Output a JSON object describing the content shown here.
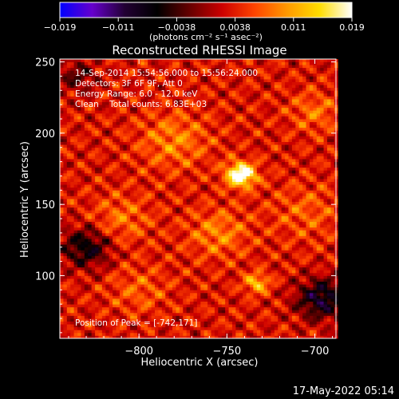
{
  "chart_data": {
    "type": "heatmap",
    "title": "Reconstructed RHESSI Image",
    "xlabel": "Heliocentric X (arcsec)",
    "ylabel": "Heliocentric Y (arcsec)",
    "xlim": [
      -845,
      -688
    ],
    "ylim": [
      56,
      252
    ],
    "x_ticks": [
      -800,
      -750,
      -700
    ],
    "x_tick_labels": [
      "−800",
      "−750",
      "−700"
    ],
    "y_ticks": [
      100,
      150,
      200,
      250
    ],
    "y_tick_labels": [
      "100",
      "150",
      "200",
      "250"
    ],
    "colorbar": {
      "min": -0.019,
      "max": 0.019,
      "tick_labels": [
        "−0.019",
        "−0.011",
        "−0.0038",
        "0.0038",
        "0.011",
        "0.019"
      ],
      "unit_label": "(photons cm⁻² s⁻¹ asec⁻²)",
      "colormap": [
        "#0000ff",
        "#6600cc",
        "#220033",
        "#000000",
        "#660000",
        "#cc0000",
        "#ff4400",
        "#ff9900",
        "#ffdd00",
        "#ffffff"
      ]
    },
    "annotations": [
      "14-Sep-2014 15:54:56.000 to 15:56:24.000",
      "Detectors: 3F 6F 9F, Att 0",
      "Energy Range: 6.0 - 12.0 keV",
      "Clean    Total counts: 6.83E+03"
    ],
    "peak_label": "Position of Peak = [-742,171]",
    "peak": {
      "x": -742,
      "y": 171
    },
    "features": [
      {
        "x": -742,
        "y": 171,
        "sigma": 6,
        "amplitude": 0.019
      },
      {
        "x": -733,
        "y": 95,
        "sigma": 5,
        "amplitude": 0.01
      },
      {
        "x": -780,
        "y": 195,
        "sigma": 14,
        "amplitude": 0.006
      },
      {
        "x": -755,
        "y": 130,
        "sigma": 12,
        "amplitude": 0.006
      },
      {
        "x": -810,
        "y": 140,
        "sigma": 12,
        "amplitude": 0.005
      },
      {
        "x": -700,
        "y": 215,
        "sigma": 10,
        "amplitude": 0.005
      },
      {
        "x": -705,
        "y": 145,
        "sigma": 14,
        "amplitude": 0.004
      },
      {
        "x": -800,
        "y": 90,
        "sigma": 12,
        "amplitude": 0.004
      },
      {
        "x": -830,
        "y": 120,
        "sigma": 10,
        "amplitude": -0.01
      },
      {
        "x": -696,
        "y": 84,
        "sigma": 10,
        "amplitude": -0.012
      },
      {
        "x": -835,
        "y": 240,
        "sigma": 8,
        "amplitude": -0.006
      }
    ]
  },
  "timestamp": "17-May-2022 05:14"
}
